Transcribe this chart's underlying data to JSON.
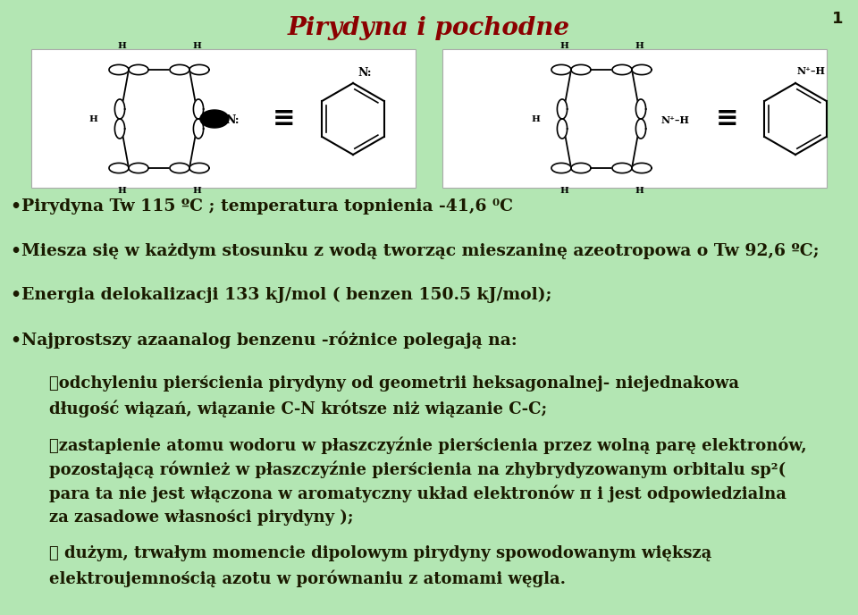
{
  "title": "Pirydyna i pochodne",
  "title_color": "#8B0000",
  "title_fontsize": 20,
  "page_number": "1",
  "background_color": "#b3e6b3",
  "panel_color": "#ffffff",
  "text_color": "#1a1a00",
  "font_size_body": 13.5,
  "font_size_sub": 13.0,
  "bullets": [
    "•Pirydyna Tw 115 ºC ; temperatura topnienia -41,6 ⁰C",
    "•Miesza się w każdym stosunku z wodą tworząc mieszaninę azeotropowa o Tw 92,6 ºC;",
    "•Energia delokalizacji 133 kJ/mol ( benzen 150.5 kJ/mol);",
    "•Najprostszy azaanalog benzenu -różnice polegają na:"
  ],
  "sub_bullets": [
    [
      "✓odchyleniu pierścienia pirydyny od geometrii heksagonalnej- niejednakowa",
      "długość wiązań, wiązanie C-N krótsze niż wiązanie C-C;"
    ],
    [
      "✓zastapienie atomu wodoru w płaszczyźnie pierścienia przez wolną parę elektronów,",
      "pozostającą również w płaszczyźnie pierścienia na zhybrydyzowanym orbitalu sp²(",
      "para ta nie jest włączona w aromatyczny układ elektronów π i jest odpowiedzialna",
      "za zasadowe własności pirydyny );"
    ],
    [
      "✓ dużym, trwałym momencie dipolowym pirydyny spowodowanym większą",
      "elektroujemnością azotu w porównaniu z atomami węgla."
    ]
  ]
}
